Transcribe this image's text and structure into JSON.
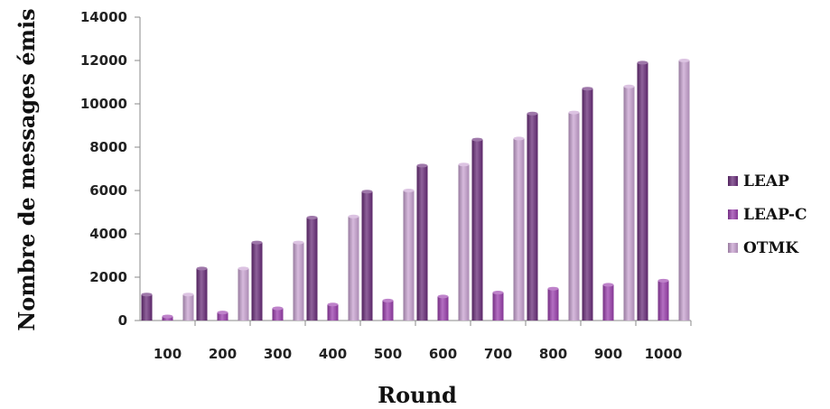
{
  "chart_data": {
    "type": "bar",
    "categories": [
      "100",
      "200",
      "300",
      "400",
      "500",
      "600",
      "700",
      "800",
      "900",
      "1000"
    ],
    "series": [
      {
        "name": "LEAP",
        "color": "#6a2d7a",
        "values": [
          1200,
          2400,
          3600,
          4750,
          5950,
          7150,
          8350,
          9550,
          10700,
          11900
        ]
      },
      {
        "name": "LEAP-C",
        "color": "#9b3fae",
        "values": [
          190,
          370,
          560,
          740,
          920,
          1110,
          1290,
          1470,
          1650,
          1840
        ]
      },
      {
        "name": "OTMK",
        "color": "#c9a3d2",
        "values": [
          1200,
          2400,
          3600,
          4800,
          6000,
          7200,
          8400,
          9600,
          10800,
          12000
        ]
      }
    ],
    "ylim": [
      0,
      14000
    ],
    "yticks": [
      "0",
      "2000",
      "4000",
      "6000",
      "8000",
      "10000",
      "12000",
      "14000"
    ],
    "xlabel": "Round",
    "ylabel": "Nombre de messages émis",
    "legend_position": "right",
    "grid": false
  }
}
